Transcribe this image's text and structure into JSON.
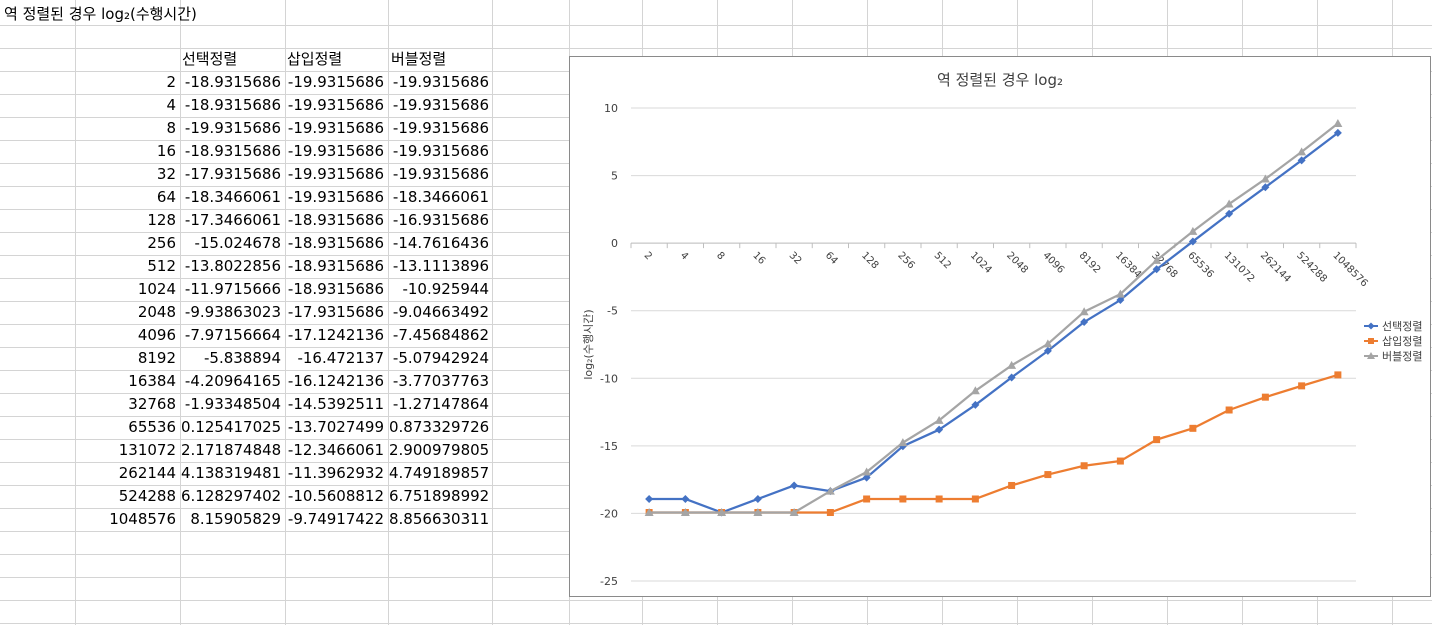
{
  "sheet": {
    "title": "역 정렬된 경우  log₂(수행시간)",
    "headers": [
      "선택정렬",
      "삽입정렬",
      "버블정렬"
    ],
    "rows": [
      [
        "2",
        "-18.9315686",
        "-19.9315686",
        "-19.9315686"
      ],
      [
        "4",
        "-18.9315686",
        "-19.9315686",
        "-19.9315686"
      ],
      [
        "8",
        "-19.9315686",
        "-19.9315686",
        "-19.9315686"
      ],
      [
        "16",
        "-18.9315686",
        "-19.9315686",
        "-19.9315686"
      ],
      [
        "32",
        "-17.9315686",
        "-19.9315686",
        "-19.9315686"
      ],
      [
        "64",
        "-18.3466061",
        "-19.9315686",
        "-18.3466061"
      ],
      [
        "128",
        "-17.3466061",
        "-18.9315686",
        "-16.9315686"
      ],
      [
        "256",
        "-15.024678",
        "-18.9315686",
        "-14.7616436"
      ],
      [
        "512",
        "-13.8022856",
        "-18.9315686",
        "-13.1113896"
      ],
      [
        "1024",
        "-11.9715666",
        "-18.9315686",
        "-10.925944"
      ],
      [
        "2048",
        "-9.93863023",
        "-17.9315686",
        "-9.04663492"
      ],
      [
        "4096",
        "-7.97156664",
        "-17.1242136",
        "-7.45684862"
      ],
      [
        "8192",
        "-5.838894",
        "-16.472137",
        "-5.07942924"
      ],
      [
        "16384",
        "-4.20964165",
        "-16.1242136",
        "-3.77037763"
      ],
      [
        "32768",
        "-1.93348504",
        "-14.5392511",
        "-1.27147864"
      ],
      [
        "65536",
        "0.125417025",
        "-13.7027499",
        "0.873329726"
      ],
      [
        "131072",
        "2.171874848",
        "-12.3466061",
        "2.900979805"
      ],
      [
        "262144",
        "4.138319481",
        "-11.3962932",
        "4.749189857"
      ],
      [
        "524288",
        "6.128297402",
        "-10.5608812",
        "6.751898992"
      ],
      [
        "1048576",
        "8.15905829",
        "-9.74917422",
        "8.856630311"
      ]
    ]
  },
  "chart_data": {
    "type": "line",
    "title": "역 정렬된 경우  log₂",
    "xlabel": "",
    "ylabel": "log₂(수행시간)",
    "ylim": [
      -25,
      10
    ],
    "yticks": [
      10,
      5,
      0,
      -5,
      -10,
      -15,
      -20,
      -25
    ],
    "grid": true,
    "legend": "right",
    "categories": [
      "2",
      "4",
      "8",
      "16",
      "32",
      "64",
      "128",
      "256",
      "512",
      "1024",
      "2048",
      "4096",
      "8192",
      "16384",
      "32768",
      "65536",
      "131072",
      "262144",
      "524288",
      "1048576"
    ],
    "series": [
      {
        "name": "선택정렬",
        "color": "#4472c4",
        "marker": "diamond",
        "values": [
          -18.9315686,
          -18.9315686,
          -19.9315686,
          -18.9315686,
          -17.9315686,
          -18.3466061,
          -17.3466061,
          -15.024678,
          -13.8022856,
          -11.9715666,
          -9.93863023,
          -7.97156664,
          -5.838894,
          -4.20964165,
          -1.93348504,
          0.125417025,
          2.171874848,
          4.138319481,
          6.128297402,
          8.15905829
        ]
      },
      {
        "name": "삽입정렬",
        "color": "#ed7d31",
        "marker": "square",
        "values": [
          -19.9315686,
          -19.9315686,
          -19.9315686,
          -19.9315686,
          -19.9315686,
          -19.9315686,
          -18.9315686,
          -18.9315686,
          -18.9315686,
          -18.9315686,
          -17.9315686,
          -17.1242136,
          -16.472137,
          -16.1242136,
          -14.5392511,
          -13.7027499,
          -12.3466061,
          -11.3962932,
          -10.5608812,
          -9.74917422
        ]
      },
      {
        "name": "버블정렬",
        "color": "#a5a5a5",
        "marker": "triangle",
        "values": [
          -19.9315686,
          -19.9315686,
          -19.9315686,
          -19.9315686,
          -19.9315686,
          -18.3466061,
          -16.9315686,
          -14.7616436,
          -13.1113896,
          -10.925944,
          -9.04663492,
          -7.45684862,
          -5.07942924,
          -3.77037763,
          -1.27147864,
          0.873329726,
          2.900979805,
          4.749189857,
          6.751898992,
          8.856630311
        ]
      }
    ]
  }
}
